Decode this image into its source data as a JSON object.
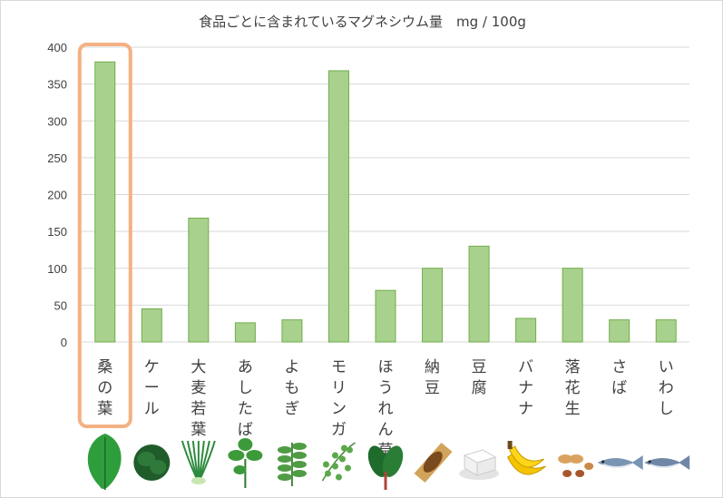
{
  "chart_data": {
    "type": "bar",
    "title": "食品ごとに含まれているマグネシウム量　mg / 100g",
    "categories": [
      "桑の葉",
      "ケール",
      "大麦若葉",
      "あしたば",
      "よもぎ",
      "モリンガ",
      "ほうれん草",
      "納豆",
      "豆腐",
      "バナナ",
      "落花生",
      "さば",
      "いわし"
    ],
    "values": [
      380,
      45,
      168,
      26,
      30,
      368,
      70,
      100,
      130,
      32,
      100,
      30,
      30
    ],
    "ylim": [
      0,
      400
    ],
    "yticks": [
      "0",
      "50",
      "100",
      "150",
      "200",
      "250",
      "300",
      "350",
      "400"
    ],
    "highlight_index": 0,
    "grid": true,
    "colors": {
      "bar_fill": "#a9d18e",
      "bar_stroke": "#70ad47",
      "highlight": "#f4b183",
      "grid": "#d9d9d9"
    },
    "icons": [
      "mulberry-leaf-icon",
      "kale-icon",
      "barley-grass-icon",
      "ashitaba-icon",
      "yomogi-icon",
      "moringa-icon",
      "spinach-icon",
      "natto-icon",
      "tofu-icon",
      "banana-icon",
      "peanut-icon",
      "mackerel-icon",
      "sardine-icon"
    ]
  }
}
